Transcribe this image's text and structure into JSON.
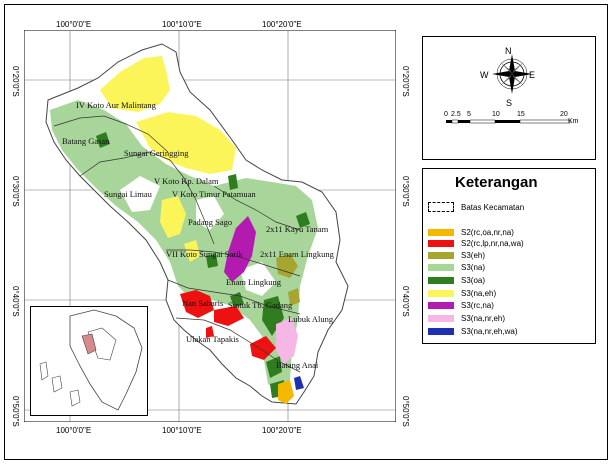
{
  "map": {
    "top_labels": [
      "100°0'0\"E",
      "100°10'0\"E",
      "100°20'0\"E"
    ],
    "bottom_labels": [
      "100°0'0\"E",
      "100°10'0\"E",
      "100°20'0\"E"
    ],
    "left_labels": [
      "0°20'0\"S",
      "0°30'0\"S",
      "0°40'0\"S",
      "0°50'0\"S"
    ],
    "right_labels": [
      "0°20'0\"S",
      "0°30'0\"S",
      "0°40'0\"S",
      "0°50'0\"S"
    ],
    "places": {
      "iv_koto": "IV Koto Aur Malintang",
      "batang_gasan": "Batang Gasan",
      "sungai_geringging": "Sungai Geringging",
      "v_koto_kp_dalam": "V Koto Kp. Dalam",
      "sungai_limau": "Sungai Limau",
      "v_koto_timur": "V Koto Timur Patamuan",
      "padang_sago": "Padang Sago",
      "vii_koto": "VII Koto Sungai Sarik",
      "two_x11_kayu_tanam": "2x11 Kayu Tanam",
      "two_x11_enam_lingkung": "2x11 Enam Lingkung",
      "enam_lingkung": "Enam Lingkung",
      "nan_sabaris": "Nan Sabaris",
      "sintuk": "Sintuk Tb. Gadang",
      "lubuk_alung": "Lubuk Alung",
      "ulakan_tapakis": "Ulakan Tapakis",
      "batang_anai": "Batang Anai"
    }
  },
  "compass": {
    "n": "N",
    "s": "S",
    "e": "E",
    "w": "W"
  },
  "scalebar": {
    "labels": [
      "0",
      "2.5",
      "5",
      "10",
      "15",
      "20"
    ],
    "unit": "Km"
  },
  "legend": {
    "title": "Keterangan",
    "items": [
      {
        "label": "Batas Kecamatan",
        "color": "#ffffff"
      },
      {
        "label": "S2(rc,oa,nr,na)",
        "color": "#f5b800"
      },
      {
        "label": "S2(rc,lp,nr,na,wa)",
        "color": "#ee1111"
      },
      {
        "label": "S3(eh)",
        "color": "#a5a530"
      },
      {
        "label": "S3(na)",
        "color": "#a8d59a"
      },
      {
        "label": "S3(oa)",
        "color": "#2f7d1e"
      },
      {
        "label": "S3(na,eh)",
        "color": "#fbf55a"
      },
      {
        "label": "S3(rc,na)",
        "color": "#b31ab0"
      },
      {
        "label": "S3(na,nr,eh)",
        "color": "#f7b7e6"
      },
      {
        "label": "S3(na,nr,eh,wa)",
        "color": "#1e2fb5"
      }
    ]
  }
}
